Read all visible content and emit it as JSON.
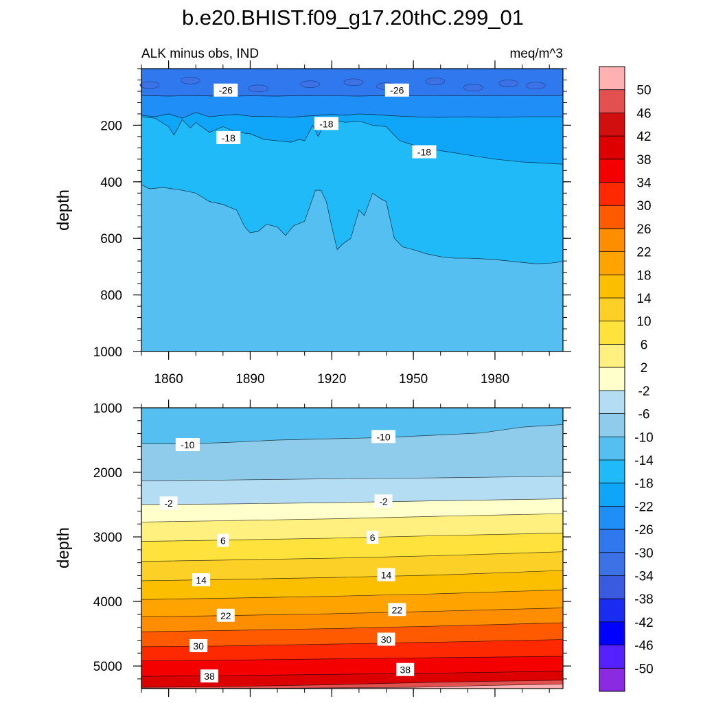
{
  "figure": {
    "title": "b.e20.BHIST.f09_g17.20thC.299_01",
    "subtitle_left": "ALK minus obs, IND",
    "subtitle_right": "meq/m^3"
  },
  "chart_data": [
    {
      "type": "heatmap",
      "panel": "upper",
      "title": "b.e20.BHIST.f09_g17.20thC.299_01",
      "subtitle_left": "ALK minus obs, IND",
      "subtitle_right": "meq/m^3",
      "xlabel": "",
      "ylabel": "depth",
      "x_range": [
        1850,
        2005
      ],
      "y_range": [
        0,
        1000
      ],
      "y_inverted": true,
      "x_ticks": [
        1860,
        1890,
        1920,
        1950,
        1980
      ],
      "y_ticks": [
        200,
        400,
        600,
        800,
        1000
      ],
      "contour_interval": 4,
      "level_boundaries": [
        {
          "label": "-26",
          "contour": -26,
          "x": [
            1850,
            1860,
            1870,
            1880,
            1890,
            1900,
            1910,
            1920,
            1930,
            1940,
            1950,
            1960,
            1970,
            1980,
            1990,
            2005
          ],
          "y": [
            95,
            97,
            95,
            98,
            96,
            97,
            95,
            96,
            97,
            95,
            96,
            95,
            96,
            95,
            96,
            95
          ]
        },
        {
          "label": "-22",
          "contour": -22,
          "x": [
            1850,
            1855,
            1860,
            1865,
            1870,
            1875,
            1880,
            1885,
            1890,
            1900,
            1905,
            1910,
            1915,
            1920,
            1925,
            1930,
            1935,
            1940,
            1945,
            1950,
            1960,
            1970,
            1980,
            1990,
            2005
          ],
          "y": [
            165,
            170,
            160,
            175,
            155,
            170,
            165,
            162,
            168,
            170,
            172,
            168,
            165,
            162,
            165,
            160,
            162,
            165,
            168,
            170,
            172,
            170,
            172,
            170,
            170
          ]
        },
        {
          "label": "-18",
          "contour": -18,
          "x": [
            1850,
            1855,
            1860,
            1862,
            1865,
            1868,
            1870,
            1875,
            1880,
            1885,
            1890,
            1895,
            1900,
            1905,
            1908,
            1910,
            1913,
            1915,
            1918,
            1920,
            1925,
            1930,
            1935,
            1940,
            1945,
            1950,
            1960,
            1970,
            1980,
            1990,
            2000,
            2005
          ],
          "y": [
            170,
            175,
            205,
            235,
            180,
            210,
            190,
            225,
            205,
            225,
            230,
            250,
            255,
            260,
            250,
            255,
            200,
            240,
            180,
            180,
            190,
            185,
            200,
            205,
            255,
            270,
            290,
            305,
            320,
            330,
            335,
            338
          ]
        },
        {
          "label": "-14",
          "contour": -14,
          "x": [
            1850,
            1853,
            1858,
            1865,
            1870,
            1875,
            1880,
            1885,
            1888,
            1890,
            1893,
            1896,
            1900,
            1903,
            1906,
            1910,
            1914,
            1916,
            1918,
            1920,
            1922,
            1924,
            1927,
            1930,
            1932,
            1935,
            1938,
            1940,
            1943,
            1946,
            1950,
            1955,
            1960,
            1965,
            1970,
            1975,
            1980,
            1985,
            1990,
            1995,
            2000,
            2005
          ],
          "y": [
            410,
            425,
            420,
            430,
            440,
            470,
            480,
            500,
            560,
            580,
            575,
            550,
            560,
            590,
            555,
            540,
            430,
            430,
            470,
            560,
            640,
            620,
            600,
            500,
            520,
            440,
            460,
            470,
            600,
            630,
            640,
            655,
            665,
            670,
            670,
            672,
            675,
            680,
            685,
            690,
            688,
            682
          ]
        }
      ],
      "labels": [
        {
          "text": "-26",
          "x": 1881,
          "y": 77
        },
        {
          "text": "-26",
          "x": 1944,
          "y": 77
        },
        {
          "text": "-18",
          "x": 1882,
          "y": 245
        },
        {
          "text": "-18",
          "x": 1918,
          "y": 195
        },
        {
          "text": "-18",
          "x": 1954,
          "y": 295
        }
      ],
      "color_by_band": [
        "#2f78ee",
        "#1f8ef6",
        "#0fa6fa",
        "#1fbaf7",
        "#55bff2"
      ],
      "noise_patches": [
        {
          "x": 1853,
          "y": 58
        },
        {
          "x": 1868,
          "y": 42
        },
        {
          "x": 1893,
          "y": 70
        },
        {
          "x": 1912,
          "y": 55
        },
        {
          "x": 1928,
          "y": 48
        },
        {
          "x": 1940,
          "y": 62
        },
        {
          "x": 1958,
          "y": 45
        },
        {
          "x": 1972,
          "y": 67
        },
        {
          "x": 1985,
          "y": 52
        },
        {
          "x": 1995,
          "y": 60
        }
      ]
    },
    {
      "type": "heatmap",
      "panel": "lower",
      "xlabel": "",
      "ylabel": "depth",
      "x_range": [
        1850,
        2005
      ],
      "y_range": [
        1000,
        5350
      ],
      "y_inverted": true,
      "y_ticks": [
        1000,
        2000,
        3000,
        4000,
        5000
      ],
      "x_ticks": [
        1860,
        1890,
        1920,
        1950,
        1980
      ],
      "contour_interval": 4,
      "level_boundaries": [
        {
          "label": "-10",
          "contour": -10,
          "x": [
            1850,
            1865,
            1880,
            1900,
            1920,
            1940,
            1960,
            1975,
            1990,
            2005
          ],
          "y": [
            1560,
            1560,
            1540,
            1500,
            1480,
            1460,
            1420,
            1390,
            1300,
            1260
          ]
        },
        {
          "label": "-6",
          "contour": -6,
          "x": [
            1850,
            1880,
            1920,
            1960,
            2005
          ],
          "y": [
            2130,
            2120,
            2100,
            2085,
            2060
          ]
        },
        {
          "label": "-2",
          "contour": -2,
          "x": [
            1850,
            1880,
            1920,
            1960,
            2005
          ],
          "y": [
            2500,
            2490,
            2470,
            2440,
            2410
          ]
        },
        {
          "label": "2",
          "contour": 2,
          "x": [
            1850,
            1880,
            1920,
            1960,
            2005
          ],
          "y": [
            2770,
            2750,
            2720,
            2680,
            2640
          ]
        },
        {
          "label": "6",
          "contour": 6,
          "x": [
            1850,
            1880,
            1920,
            1960,
            2005
          ],
          "y": [
            3070,
            3050,
            3020,
            2980,
            2940
          ]
        },
        {
          "label": "10",
          "contour": 10,
          "x": [
            1850,
            1880,
            1920,
            1960,
            2005
          ],
          "y": [
            3380,
            3360,
            3330,
            3290,
            3230
          ]
        },
        {
          "label": "14",
          "contour": 14,
          "x": [
            1850,
            1880,
            1920,
            1960,
            2005
          ],
          "y": [
            3680,
            3660,
            3630,
            3590,
            3520
          ]
        },
        {
          "label": "18",
          "contour": 18,
          "x": [
            1850,
            1880,
            1920,
            1960,
            2005
          ],
          "y": [
            3970,
            3950,
            3920,
            3880,
            3820
          ]
        },
        {
          "label": "22",
          "contour": 22,
          "x": [
            1850,
            1880,
            1920,
            1960,
            2005
          ],
          "y": [
            4240,
            4220,
            4190,
            4150,
            4100
          ]
        },
        {
          "label": "26",
          "contour": 26,
          "x": [
            1850,
            1880,
            1920,
            1960,
            2005
          ],
          "y": [
            4470,
            4450,
            4420,
            4380,
            4330
          ]
        },
        {
          "label": "30",
          "contour": 30,
          "x": [
            1850,
            1880,
            1920,
            1960,
            2005
          ],
          "y": [
            4700,
            4690,
            4660,
            4630,
            4590
          ]
        },
        {
          "label": "34",
          "contour": 34,
          "x": [
            1850,
            1880,
            1920,
            1960,
            2005
          ],
          "y": [
            4920,
            4910,
            4890,
            4870,
            4850
          ]
        },
        {
          "label": "38",
          "contour": 38,
          "x": [
            1850,
            1880,
            1920,
            1960,
            2005
          ],
          "y": [
            5160,
            5150,
            5130,
            5110,
            5080
          ]
        },
        {
          "label": "42",
          "contour": 42,
          "x": [
            1850,
            1880,
            1920,
            1960,
            2005
          ],
          "y": [
            5330,
            5320,
            5290,
            5250,
            5220
          ]
        },
        {
          "label": "46",
          "contour": 46,
          "x": [
            1850,
            1900,
            1950,
            1980,
            2005
          ],
          "y": [
            5345,
            5345,
            5330,
            5300,
            5280
          ]
        }
      ],
      "labels": [
        {
          "text": "-10",
          "x": 1867,
          "y": 1575
        },
        {
          "text": "-10",
          "x": 1939,
          "y": 1450
        },
        {
          "text": "-2",
          "x": 1860,
          "y": 2480
        },
        {
          "text": "-2",
          "x": 1939,
          "y": 2450
        },
        {
          "text": "6",
          "x": 1880,
          "y": 3060
        },
        {
          "text": "6",
          "x": 1935,
          "y": 3010
        },
        {
          "text": "14",
          "x": 1872,
          "y": 3670
        },
        {
          "text": "14",
          "x": 1940,
          "y": 3590
        },
        {
          "text": "22",
          "x": 1881,
          "y": 4220
        },
        {
          "text": "22",
          "x": 1944,
          "y": 4130
        },
        {
          "text": "30",
          "x": 1871,
          "y": 4690
        },
        {
          "text": "30",
          "x": 1940,
          "y": 4590
        },
        {
          "text": "38",
          "x": 1875,
          "y": 5160
        },
        {
          "text": "38",
          "x": 1947,
          "y": 5060
        }
      ],
      "color_by_band": [
        "#55bff2",
        "#8fccec",
        "#b4ddf3",
        "#feffca",
        "#fff07f",
        "#ffe23c",
        "#fcd027",
        "#fcbf00",
        "#ffa300",
        "#ff8d00",
        "#ff5a00",
        "#ff2900",
        "#f40000",
        "#dd0000",
        "#e35050",
        "#ffb0b0"
      ]
    }
  ],
  "colorbar": {
    "levels": [
      50,
      46,
      42,
      38,
      34,
      30,
      26,
      22,
      18,
      14,
      10,
      6,
      2,
      -2,
      -6,
      -10,
      -14,
      -18,
      -22,
      -26,
      -30,
      -34,
      -38,
      -42,
      -46,
      -50
    ],
    "tick_labels": [
      "50",
      "46",
      "42",
      "38",
      "34",
      "30",
      "26",
      "22",
      "18",
      "14",
      "10",
      "6",
      "2",
      "-2",
      "-6",
      "-10",
      "-14",
      "-18",
      "-22",
      "-26",
      "-30",
      "-34",
      "-38",
      "-42",
      "-46",
      "-50"
    ],
    "colors": [
      "#ffb0b0",
      "#e35050",
      "#d20f0f",
      "#de0000",
      "#f40000",
      "#ff2900",
      "#ff5a00",
      "#ff8d00",
      "#ffa300",
      "#fcbf00",
      "#fcd027",
      "#ffe23c",
      "#fff07f",
      "#feffca",
      "#b4ddf3",
      "#8fccec",
      "#55bff2",
      "#1fbaf7",
      "#0fa6fa",
      "#1f8ef6",
      "#2f78ee",
      "#3c72e6",
      "#3a5ae0",
      "#1a2cf0",
      "#0000ff",
      "#5522ff",
      "#8a2be2"
    ]
  }
}
